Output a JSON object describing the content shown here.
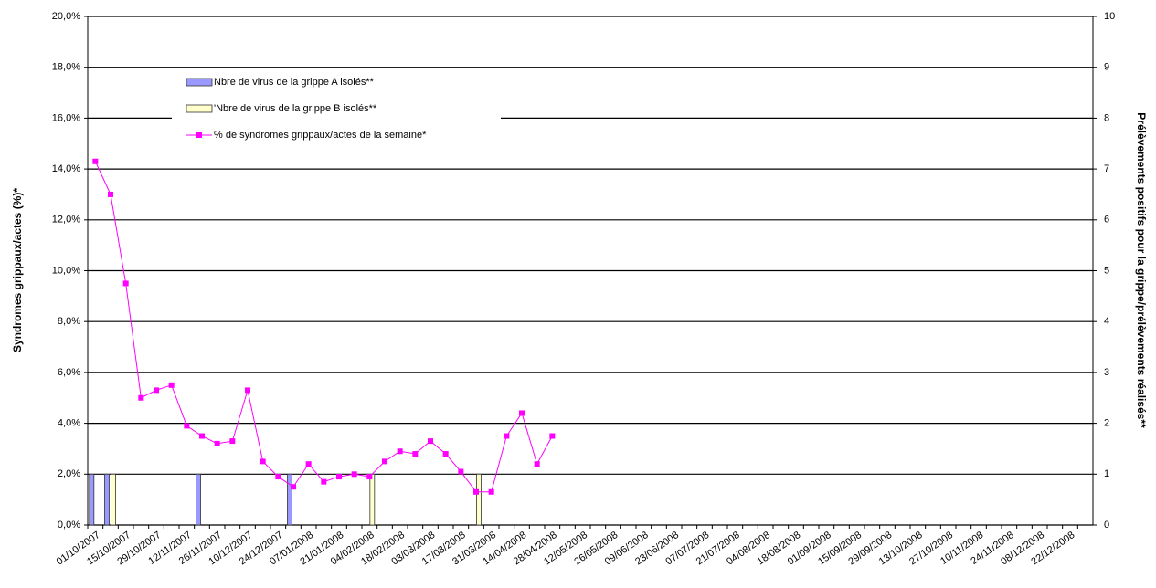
{
  "chart_data": {
    "type": "bar_line",
    "y_label": "Syndromes grippaux/actes (%)*",
    "y2_label": "Prélèvements positifs pour la grippe/prélèvements réalisés**",
    "categories": [
      "01/10/2007",
      null,
      "15/10/2007",
      null,
      "29/10/2007",
      null,
      "12/11/2007",
      null,
      "26/11/2007",
      null,
      "10/12/2007",
      null,
      "24/12/2007",
      null,
      "07/01/2008",
      null,
      "21/01/2008",
      null,
      "04/02/2008",
      null,
      "18/02/2008",
      null,
      "03/03/2008",
      null,
      "17/03/2008",
      null,
      "31/03/2008",
      null,
      "14/04/2008",
      null,
      "28/04/2008",
      null,
      "12/05/2008",
      null,
      "26/05/2008",
      null,
      "09/06/2008",
      null,
      "23/06/2008",
      null,
      "07/07/2008",
      null,
      "21/07/2008",
      null,
      "04/08/2008",
      null,
      "18/08/2008",
      null,
      "01/09/2008",
      null,
      "15/09/2008",
      null,
      "29/09/2008",
      null,
      "13/10/2008",
      null,
      "27/10/2008",
      null,
      "10/11/2008",
      null,
      "24/11/2008",
      null,
      "08/12/2008",
      null,
      "22/12/2008",
      null
    ],
    "series": [
      {
        "name": "Nbre de virus de la grippe A  isolés**",
        "type": "bar",
        "axis": "y2",
        "color": "#9999ff",
        "values": [
          1,
          1,
          null,
          null,
          null,
          null,
          null,
          1,
          null,
          null,
          null,
          null,
          null,
          1,
          null,
          null,
          null,
          null,
          null,
          null,
          null,
          null,
          null,
          null,
          null,
          null,
          null,
          null,
          null,
          null,
          null,
          null,
          null,
          null,
          null,
          null,
          null,
          null,
          null,
          null,
          null,
          null,
          null,
          null,
          null,
          null,
          null,
          null,
          null,
          null,
          null,
          null,
          null,
          null,
          null,
          null,
          null,
          null,
          null,
          null,
          null,
          null,
          null,
          null,
          null,
          null
        ]
      },
      {
        "name": "'Nbre de virus de la grippe B isolés**",
        "type": "bar",
        "axis": "y2",
        "color": "#ffffcc",
        "values": [
          null,
          1,
          null,
          null,
          null,
          null,
          null,
          null,
          null,
          null,
          null,
          null,
          null,
          null,
          null,
          null,
          null,
          null,
          1,
          null,
          null,
          null,
          null,
          null,
          null,
          1,
          null,
          null,
          null,
          null,
          null,
          null,
          null,
          null,
          null,
          null,
          null,
          null,
          null,
          null,
          null,
          null,
          null,
          null,
          null,
          null,
          null,
          null,
          null,
          null,
          null,
          null,
          null,
          null,
          null,
          null,
          null,
          null,
          null,
          null,
          null,
          null,
          null,
          null,
          null,
          null
        ]
      },
      {
        "name": "% de syndromes grippaux/actes de la semaine*",
        "type": "line",
        "color": "#ff00ff",
        "values": [
          14.3,
          13.0,
          9.5,
          5.0,
          5.3,
          5.5,
          3.9,
          3.5,
          3.2,
          3.3,
          5.3,
          2.5,
          1.9,
          1.5,
          2.4,
          1.7,
          1.9,
          2.0,
          1.9,
          2.5,
          2.9,
          2.8,
          3.3,
          2.8,
          2.1,
          1.3,
          1.3,
          3.5,
          4.4,
          2.4,
          3.5,
          null,
          null,
          null,
          null,
          null,
          null,
          null,
          null,
          null,
          null,
          null,
          null,
          null,
          null,
          null,
          null,
          null,
          null,
          null,
          null,
          null,
          null,
          null,
          null,
          null,
          null,
          null,
          null,
          null,
          null,
          null,
          null,
          null,
          null,
          null
        ]
      }
    ],
    "ylim": [
      0,
      20
    ],
    "yticks": [
      {
        "value": 0,
        "label": "0,0%"
      },
      {
        "value": 2,
        "label": "2,0%"
      },
      {
        "value": 4,
        "label": "4,0%"
      },
      {
        "value": 6,
        "label": "6,0%"
      },
      {
        "value": 8,
        "label": "8,0%"
      },
      {
        "value": 10,
        "label": "10,0%"
      },
      {
        "value": 12,
        "label": "12,0%"
      },
      {
        "value": 14,
        "label": "14,0%"
      },
      {
        "value": 16,
        "label": "16,0%"
      },
      {
        "value": 18,
        "label": "18,0%"
      },
      {
        "value": 20,
        "label": "20,0%"
      }
    ],
    "y2lim": [
      0,
      10
    ],
    "y2ticks": [
      0,
      1,
      2,
      3,
      4,
      5,
      6,
      7,
      8,
      9,
      10
    ],
    "grid": true
  }
}
